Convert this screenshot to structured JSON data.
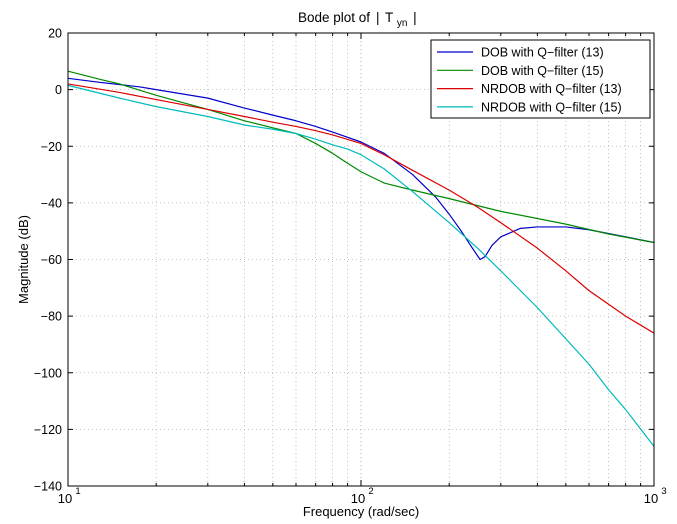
{
  "chart_data": {
    "type": "line",
    "title": "Bode plot of",
    "title_expr": {
      "open": "|",
      "base": "T",
      "sub": "yn",
      "close": "|"
    },
    "xlabel": "Frequency  (rad/sec)",
    "ylabel": "Magnitude (dB)",
    "xscale": "log",
    "xlim": [
      10,
      1000
    ],
    "ylim": [
      -140,
      20
    ],
    "yticks": [
      20,
      0,
      -20,
      -40,
      -60,
      -80,
      -100,
      -120,
      -140
    ],
    "xticks": [
      {
        "base": "10",
        "exp": "1"
      },
      {
        "base": "10",
        "exp": "2"
      },
      {
        "base": "10",
        "exp": "3"
      }
    ],
    "grid": true,
    "legend_position": "top-right",
    "series": [
      {
        "name": "DOB with Q−filter (13)",
        "color": "#0000cc",
        "x": [
          10,
          13,
          17.5,
          20,
          30,
          40,
          50,
          60,
          70,
          80,
          100,
          120,
          150,
          180,
          200,
          220,
          240,
          255,
          265,
          280,
          300,
          350,
          400,
          500,
          600,
          800,
          1000
        ],
        "y": [
          4,
          2.5,
          1,
          0,
          -3,
          -6.5,
          -9,
          -11,
          -13,
          -15,
          -18.5,
          -22.5,
          -30,
          -38,
          -44,
          -50,
          -56,
          -60,
          -59,
          -55,
          -52,
          -49,
          -48.5,
          -48.5,
          -49.5,
          -52,
          -54
        ]
      },
      {
        "name": "DOB with Q−filter (15)",
        "color": "#008800",
        "x": [
          10,
          13,
          15,
          20,
          30,
          40,
          50,
          60,
          70,
          80,
          90,
          100,
          120,
          150,
          200,
          300,
          500,
          700,
          1000
        ],
        "y": [
          6.5,
          3.5,
          2,
          -2,
          -7,
          -11,
          -13.5,
          -15.5,
          -19,
          -22.5,
          -26,
          -29,
          -33,
          -35.5,
          -38.5,
          -43,
          -47.5,
          -51,
          -54
        ]
      },
      {
        "name": "NRDOB with Q−filter (13)",
        "color": "#dd0000",
        "x": [
          10,
          15,
          20,
          30,
          40,
          50,
          60,
          70,
          80,
          100,
          120,
          150,
          200,
          250,
          300,
          400,
          500,
          600,
          800,
          1000
        ],
        "y": [
          2,
          -1,
          -3.5,
          -7,
          -9.5,
          -11.5,
          -13,
          -14.5,
          -16,
          -19,
          -23,
          -28.5,
          -35.5,
          -41.5,
          -47,
          -56,
          -64,
          -71,
          -80,
          -86
        ]
      },
      {
        "name": "NRDOB with Q−filter (15)",
        "color": "#00bbbb",
        "x": [
          10,
          15,
          20,
          30,
          40,
          50,
          60,
          70,
          80,
          90,
          100,
          120,
          150,
          200,
          250,
          300,
          400,
          500,
          600,
          700,
          800,
          1000
        ],
        "y": [
          1.5,
          -3,
          -6,
          -9.5,
          -12.5,
          -14,
          -15.5,
          -17.5,
          -19.5,
          -21,
          -23,
          -28,
          -36,
          -47,
          -56,
          -64,
          -77,
          -88,
          -97,
          -106,
          -113,
          -126
        ]
      }
    ]
  }
}
